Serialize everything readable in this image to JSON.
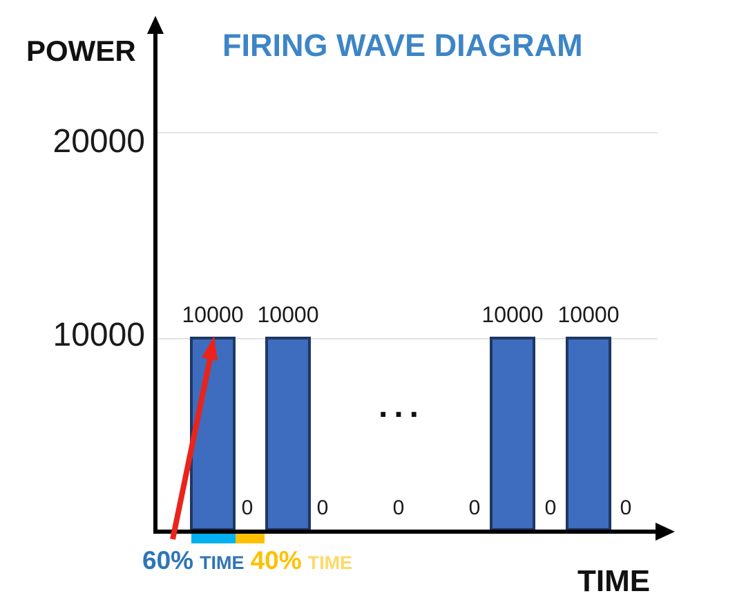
{
  "title": "FIRING WAVE DIAGRAM",
  "axis": {
    "y_label": "POWER",
    "x_label": "TIME"
  },
  "colors": {
    "title": "#3d85c6",
    "bar_fill": "#3e6cbe",
    "bar_border": "#1f3864",
    "grid": "#e3e3e3",
    "axis": "#000000",
    "arrow_red": "#ea241c",
    "duty_on": "#00b0f0",
    "duty_off": "#ffc000",
    "duty_on_text": "#2e75b6",
    "duty_off_light": "#ffd966"
  },
  "chart_data": {
    "type": "bar",
    "title": "FIRING WAVE DIAGRAM",
    "xlabel": "TIME",
    "ylabel": "POWER",
    "ylim": [
      0,
      25000
    ],
    "grid": true,
    "ytick_values": [
      20000,
      10000
    ],
    "ytick_labels": [
      "20000",
      "10000"
    ],
    "bars": {
      "values": [
        10000,
        10000,
        10000,
        10000
      ],
      "labels": [
        "10000",
        "10000",
        "10000",
        "10000"
      ]
    },
    "gap_values": [
      0,
      0,
      0,
      0,
      0,
      0
    ],
    "gap_labels": [
      "0",
      "0",
      "0",
      "0",
      "0",
      "0"
    ],
    "ellipsis": "...",
    "duty_cycle": {
      "on_pct": "60%",
      "on_word": "TIME",
      "off_pct": "40%",
      "off_word": "TIME"
    }
  }
}
